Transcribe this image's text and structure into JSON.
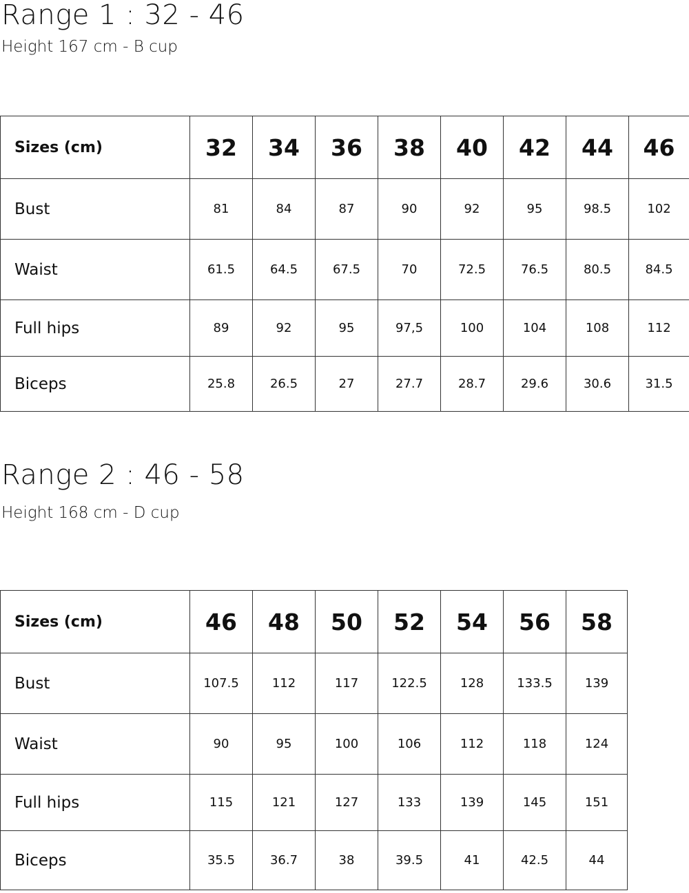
{
  "range1": {
    "title": "Range 1 : 32 - 46",
    "subtitle": "Height 167 cm - B cup",
    "table": {
      "header_label": "Sizes (cm)",
      "sizes": [
        "32",
        "34",
        "36",
        "38",
        "40",
        "42",
        "44",
        "46"
      ],
      "rows": [
        {
          "label": "Bust",
          "values": [
            "81",
            "84",
            "87",
            "90",
            "92",
            "95",
            "98.5",
            "102"
          ]
        },
        {
          "label": "Waist",
          "values": [
            "61.5",
            "64.5",
            "67.5",
            "70",
            "72.5",
            "76.5",
            "80.5",
            "84.5"
          ]
        },
        {
          "label": "Full hips",
          "values": [
            "89",
            "92",
            "95",
            "97,5",
            "100",
            "104",
            "108",
            "112"
          ]
        },
        {
          "label": "Biceps",
          "values": [
            "25.8",
            "26.5",
            "27",
            "27.7",
            "28.7",
            "29.6",
            "30.6",
            "31.5"
          ]
        }
      ]
    }
  },
  "range2": {
    "title": "Range 2 : 46 - 58",
    "subtitle": "Height 168 cm - D cup",
    "table": {
      "header_label": "Sizes (cm)",
      "sizes": [
        "46",
        "48",
        "50",
        "52",
        "54",
        "56",
        "58"
      ],
      "rows": [
        {
          "label": "Bust",
          "values": [
            "107.5",
            "112",
            "117",
            "122.5",
            "128",
            "133.5",
            "139"
          ]
        },
        {
          "label": "Waist",
          "values": [
            "90",
            "95",
            "100",
            "106",
            "112",
            "118",
            "124"
          ]
        },
        {
          "label": "Full hips",
          "values": [
            "115",
            "121",
            "127",
            "133",
            "139",
            "145",
            "151"
          ]
        },
        {
          "label": "Biceps",
          "values": [
            "35.5",
            "36.7",
            "38",
            "39.5",
            "41",
            "42.5",
            "44"
          ]
        }
      ]
    }
  }
}
